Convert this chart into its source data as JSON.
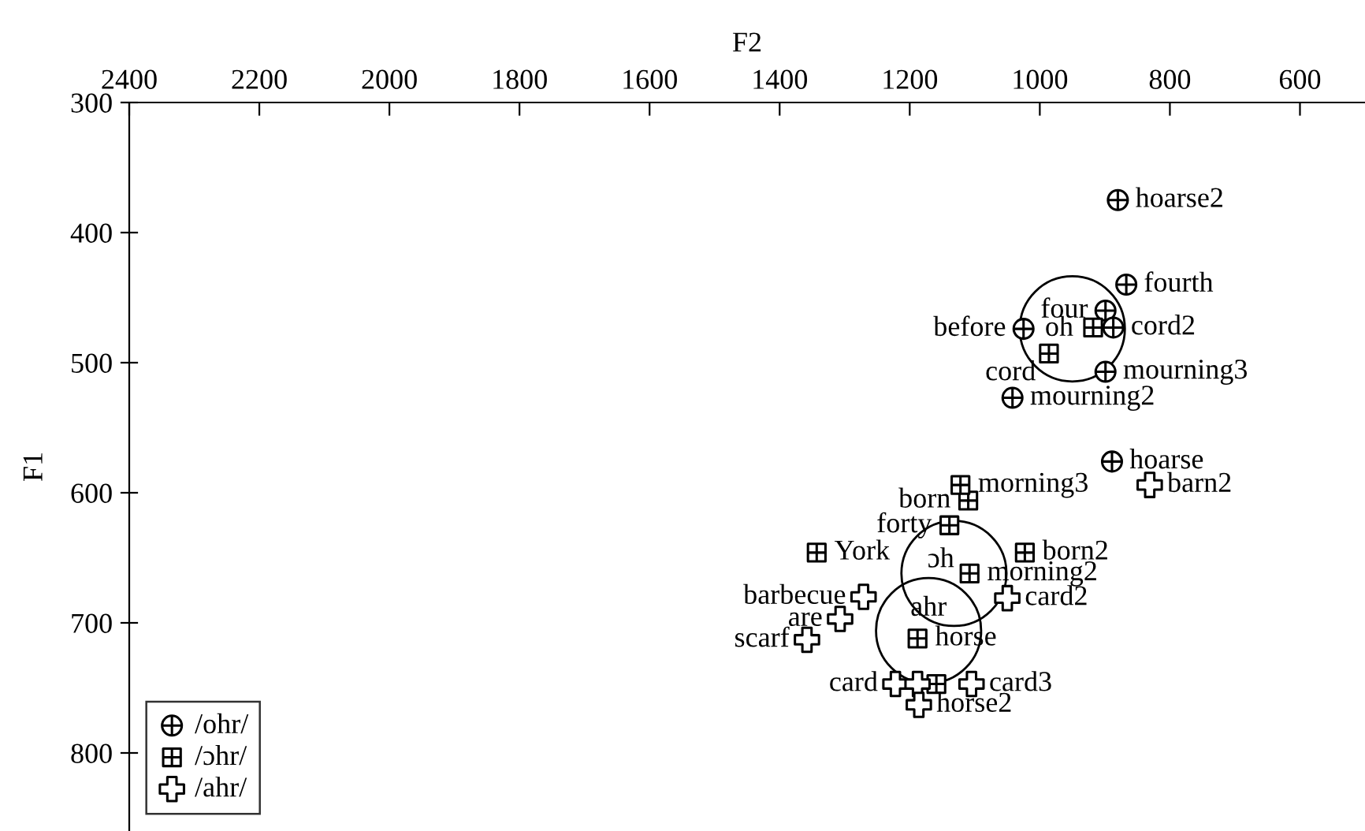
{
  "chart_data": {
    "type": "scatter",
    "xlabel": "F2",
    "ylabel": "F1",
    "xlim": [
      2400,
      500
    ],
    "xticks": [
      2400,
      2200,
      2000,
      1800,
      1600,
      1400,
      1200,
      1000,
      800,
      600
    ],
    "ylim": [
      860,
      300
    ],
    "yticks": [
      300,
      400,
      500,
      600,
      700,
      800
    ],
    "legend": "bottom left",
    "grid": false,
    "series": [
      {
        "name": "/ohr/",
        "color": "#000000",
        "x": [
          880,
          867,
          899,
          1025,
          887,
          899,
          1042,
          889
        ],
        "values": [
          375,
          440,
          460,
          474,
          473,
          507,
          527,
          576
        ]
      },
      {
        "name": "/ɔhr/",
        "color": "#000000",
        "x": [
          986,
          918,
          1110,
          1122,
          1139,
          1343,
          1023,
          1108,
          1188,
          1159
        ],
        "values": [
          493,
          473,
          606,
          594,
          625,
          646,
          646,
          662,
          712,
          747
        ]
      },
      {
        "name": "/ahr/",
        "color": "#000000",
        "x": [
          1271,
          1307,
          1358,
          1050,
          1222,
          1188,
          1186,
          1105,
          831
        ],
        "values": [
          680,
          697,
          713,
          681,
          747,
          747,
          763,
          747,
          594
        ]
      },
      {
        "type": "bubble",
        "color": "#000000",
        "x": [
          950,
          1132,
          1171
        ],
        "values": [
          474,
          662,
          706
        ],
        "sizes": [
          1,
          1,
          1
        ]
      }
    ],
    "annotations": [
      {
        "text": "hoarse2",
        "x": 880,
        "y": 375
      },
      {
        "text": "fourth",
        "x": 867,
        "y": 440
      },
      {
        "text": "four",
        "x": 899,
        "y": 460
      },
      {
        "text": "before",
        "x": 1025,
        "y": 474
      },
      {
        "text": "oh",
        "x": 950,
        "y": 474
      },
      {
        "text": "cord2",
        "x": 887,
        "y": 473
      },
      {
        "text": "cord",
        "x": 986,
        "y": 493
      },
      {
        "text": "mourning3",
        "x": 899,
        "y": 507
      },
      {
        "text": "mourning2",
        "x": 1042,
        "y": 527
      },
      {
        "text": "hoarse",
        "x": 889,
        "y": 576
      },
      {
        "text": "barn2",
        "x": 831,
        "y": 594
      },
      {
        "text": "morning3",
        "x": 1122,
        "y": 594
      },
      {
        "text": "born",
        "x": 1110,
        "y": 606
      },
      {
        "text": "forty",
        "x": 1139,
        "y": 625
      },
      {
        "text": "York",
        "x": 1343,
        "y": 646
      },
      {
        "text": "born2",
        "x": 1023,
        "y": 646
      },
      {
        "text": "barbecue",
        "x": 1271,
        "y": 680
      },
      {
        "text": "ɔh",
        "x": 1132,
        "y": 662
      },
      {
        "text": "morning2",
        "x": 1108,
        "y": 662
      },
      {
        "text": "card2",
        "x": 1050,
        "y": 681
      },
      {
        "text": "are",
        "x": 1307,
        "y": 697
      },
      {
        "text": "ahr",
        "x": 1171,
        "y": 706
      },
      {
        "text": "horse",
        "x": 1188,
        "y": 712
      },
      {
        "text": "scarf",
        "x": 1358,
        "y": 713
      },
      {
        "text": "card3",
        "x": 1105,
        "y": 747
      },
      {
        "text": "card",
        "x": 1222,
        "y": 747
      },
      {
        "text": "horse2",
        "x": 1186,
        "y": 763
      }
    ]
  }
}
